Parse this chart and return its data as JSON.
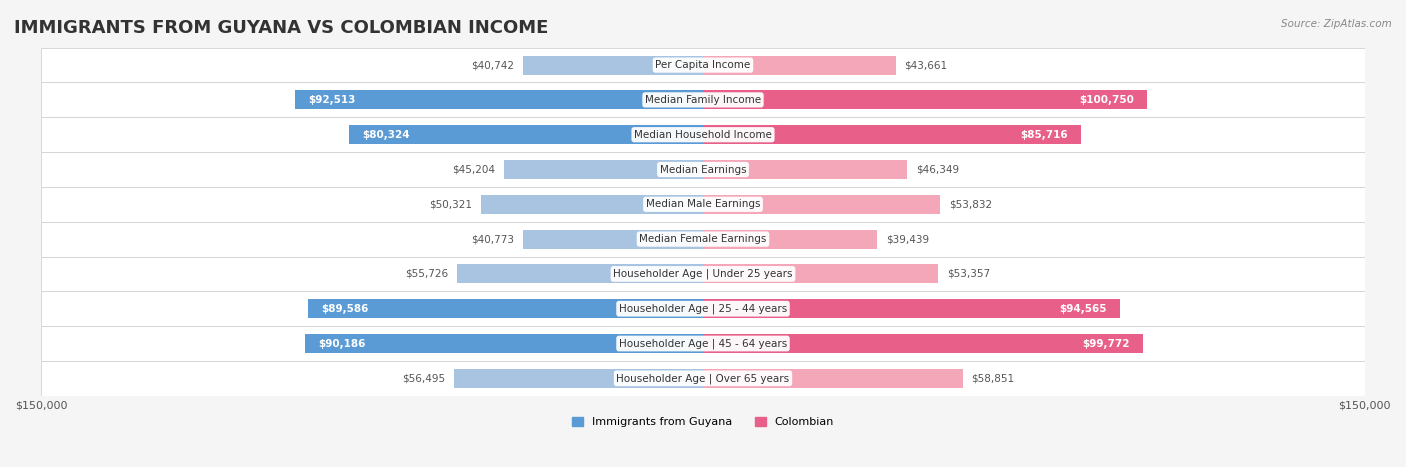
{
  "title": "IMMIGRANTS FROM GUYANA VS COLOMBIAN INCOME",
  "source": "Source: ZipAtlas.com",
  "categories": [
    "Per Capita Income",
    "Median Family Income",
    "Median Household Income",
    "Median Earnings",
    "Median Male Earnings",
    "Median Female Earnings",
    "Householder Age | Under 25 years",
    "Householder Age | 25 - 44 years",
    "Householder Age | 45 - 64 years",
    "Householder Age | Over 65 years"
  ],
  "guyana_values": [
    40742,
    92513,
    80324,
    45204,
    50321,
    40773,
    55726,
    89586,
    90186,
    56495
  ],
  "colombian_values": [
    43661,
    100750,
    85716,
    46349,
    53832,
    39439,
    53357,
    94565,
    99772,
    58851
  ],
  "guyana_labels": [
    "$40,742",
    "$92,513",
    "$80,324",
    "$45,204",
    "$50,321",
    "$40,773",
    "$55,726",
    "$89,586",
    "$90,186",
    "$56,495"
  ],
  "colombian_labels": [
    "$43,661",
    "$100,750",
    "$85,716",
    "$46,349",
    "$53,832",
    "$39,439",
    "$53,357",
    "$94,565",
    "$99,772",
    "$58,851"
  ],
  "guyana_color_light": "#a8c4e0",
  "guyana_color_dark": "#5b9bd5",
  "colombian_color_light": "#f4a7b9",
  "colombian_color_dark": "#e8608a",
  "axis_max": 150000,
  "bar_height": 0.55,
  "bg_color": "#f5f5f5",
  "row_bg_color": "#ffffff",
  "row_alt_bg": "#f0f0f0",
  "title_fontsize": 13,
  "label_fontsize": 7.5,
  "category_fontsize": 7.5,
  "axis_label_fontsize": 8,
  "legend_fontsize": 8,
  "guyana_threshold": 80000,
  "colombian_threshold": 80000
}
